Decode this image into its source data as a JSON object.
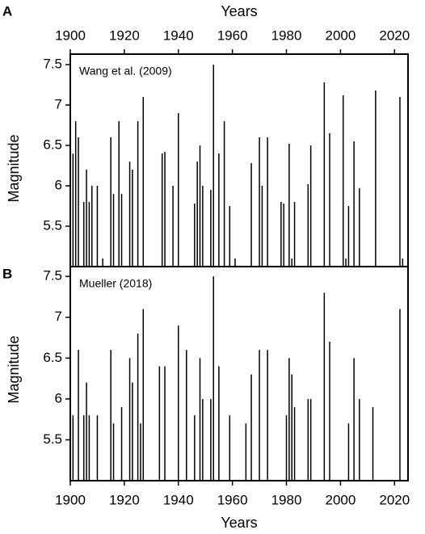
{
  "chart_data": [
    {
      "type": "bar",
      "panel_label": "A",
      "annotation": "Wang et al. (2009)",
      "xlabel": "Years",
      "ylabel": "Magnitude",
      "xaxis_position": "top",
      "color": "#000000",
      "x": [
        1900,
        1901,
        1902,
        1903,
        1905,
        1906,
        1907,
        1908,
        1910,
        1912,
        1915,
        1916,
        1918,
        1919,
        1922,
        1923,
        1925,
        1927,
        1934,
        1935,
        1938,
        1940,
        1946,
        1947,
        1948,
        1949,
        1952,
        1953,
        1955,
        1957,
        1959,
        1961,
        1967,
        1970,
        1971,
        1973,
        1978,
        1979,
        1981,
        1982,
        1983,
        1988,
        1989,
        1994,
        1996,
        2001,
        2002,
        2003,
        2005,
        2007,
        2013,
        2022,
        2023
      ],
      "values": [
        6.4,
        6.4,
        6.8,
        6.6,
        5.8,
        6.2,
        5.8,
        6.0,
        6.0,
        5.1,
        6.6,
        5.9,
        6.8,
        5.9,
        6.3,
        6.2,
        6.8,
        7.1,
        6.4,
        6.42,
        6.0,
        6.9,
        5.78,
        6.3,
        6.5,
        6.0,
        5.95,
        7.5,
        6.4,
        6.8,
        5.75,
        5.1,
        6.28,
        6.6,
        6.0,
        6.6,
        5.8,
        5.78,
        6.52,
        5.1,
        5.8,
        6.02,
        6.5,
        7.28,
        6.65,
        7.12,
        5.1,
        5.75,
        6.55,
        5.97,
        7.18,
        7.1,
        5.1
      ],
      "xlim": [
        1900,
        2025
      ],
      "xticks": [
        1900,
        1920,
        1940,
        1960,
        1980,
        2000,
        2020
      ],
      "ylim": [
        5.0,
        7.63
      ],
      "yticks": [
        5.5,
        6.0,
        6.5,
        7.0,
        7.5
      ]
    },
    {
      "type": "bar",
      "panel_label": "B",
      "annotation": "Mueller (2018)",
      "xlabel": "Years",
      "ylabel": "Magnitude",
      "xaxis_position": "bottom",
      "color": "#000000",
      "x": [
        1901,
        1903,
        1905,
        1906,
        1907,
        1910,
        1915,
        1916,
        1919,
        1922,
        1923,
        1925,
        1926,
        1927,
        1933,
        1935,
        1940,
        1943,
        1946,
        1948,
        1949,
        1952,
        1953,
        1955,
        1959,
        1965,
        1967,
        1970,
        1973,
        1980,
        1981,
        1982,
        1983,
        1988,
        1989,
        1994,
        1996,
        2003,
        2005,
        2007,
        2012,
        2022
      ],
      "values": [
        5.8,
        6.6,
        5.8,
        6.2,
        5.8,
        5.8,
        6.6,
        5.7,
        5.9,
        6.5,
        6.2,
        6.8,
        5.7,
        7.1,
        6.4,
        6.4,
        6.9,
        6.6,
        5.8,
        6.5,
        6.0,
        6.0,
        7.5,
        6.4,
        5.8,
        5.7,
        6.3,
        6.6,
        6.6,
        5.8,
        6.5,
        6.3,
        5.9,
        6.0,
        6.0,
        7.3,
        6.7,
        5.7,
        6.5,
        6.0,
        5.9,
        7.1
      ],
      "xlim": [
        1900,
        2025
      ],
      "xticks": [
        1900,
        1920,
        1940,
        1960,
        1980,
        2000,
        2020
      ],
      "ylim": [
        5.0,
        7.62
      ],
      "yticks": [
        5.5,
        6.0,
        6.5,
        7.0,
        7.5
      ]
    }
  ]
}
